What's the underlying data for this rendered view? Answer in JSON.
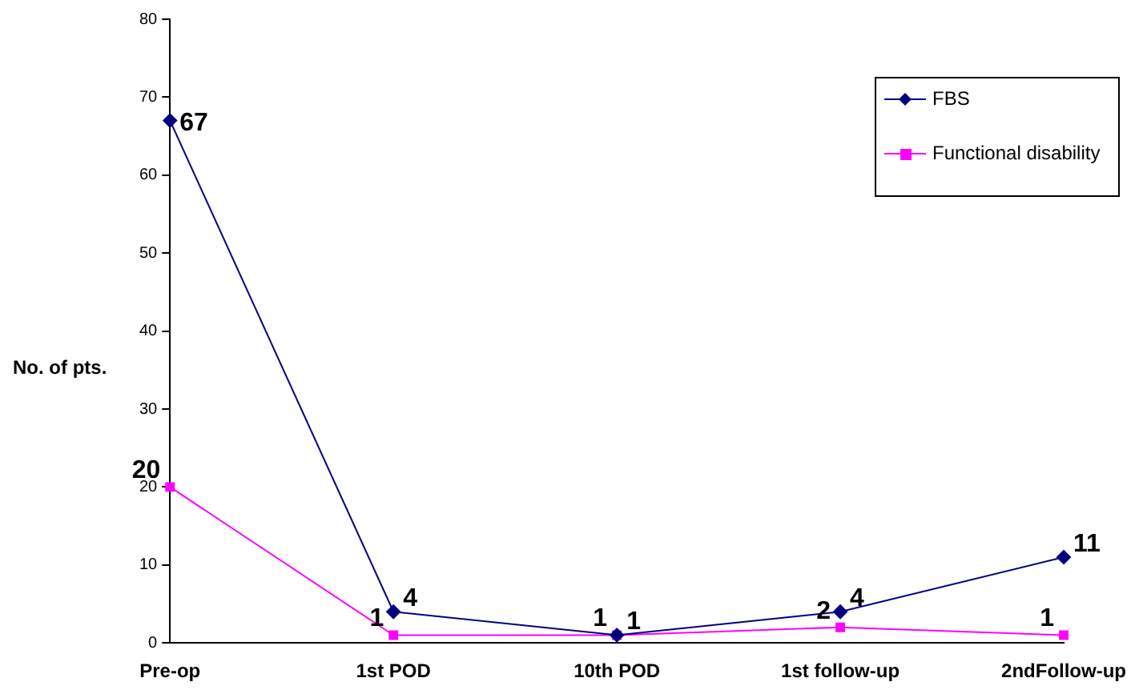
{
  "chart_data": {
    "type": "line",
    "ylabel": "No. of pts.",
    "categories": [
      "Pre-op",
      "1st POD",
      "10th POD",
      "1st follow-up",
      "2ndFollow-up"
    ],
    "series": [
      {
        "name": "FBS",
        "color": "#000080",
        "marker": "diamond",
        "values": [
          67,
          4,
          1,
          4,
          11
        ]
      },
      {
        "name": "Functional disability",
        "color": "#ff00ff",
        "marker": "square",
        "values": [
          20,
          1,
          1,
          2,
          1
        ]
      }
    ],
    "ylim": [
      0,
      80
    ],
    "yticks": [
      0,
      10,
      20,
      30,
      40,
      50,
      60,
      70,
      80
    ],
    "grid": false,
    "legend": "top right",
    "data_labels": true
  }
}
